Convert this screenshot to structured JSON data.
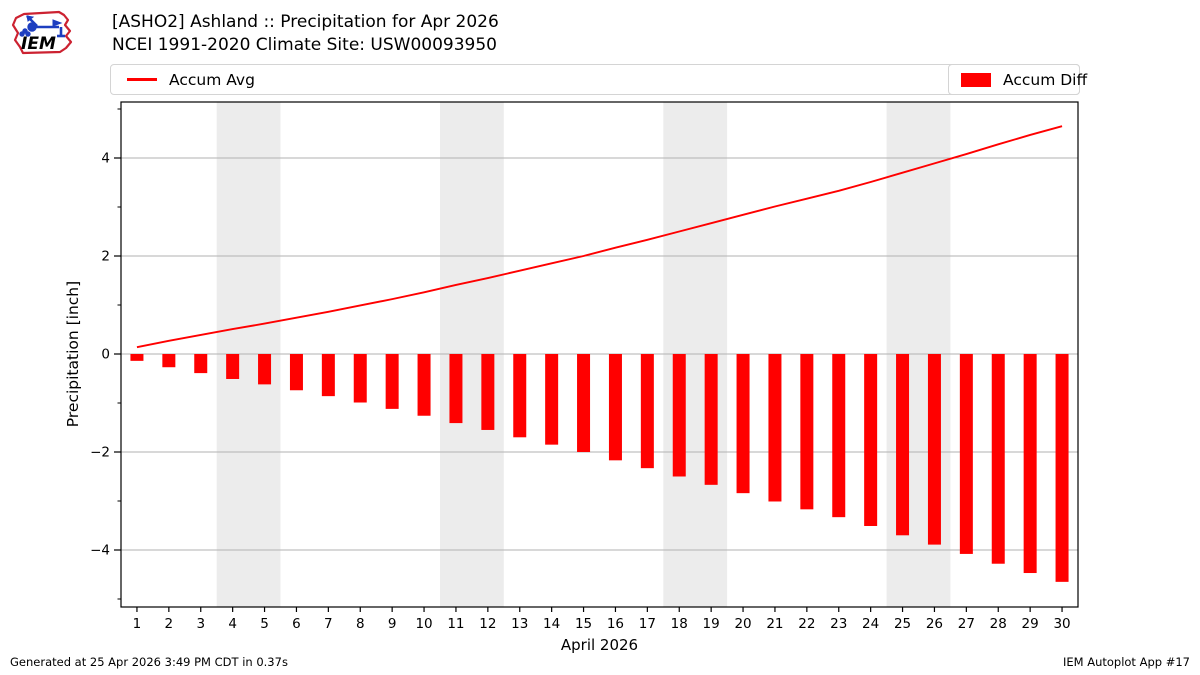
{
  "header": {
    "title_line1": "[ASHO2] Ashland :: Precipitation for Apr 2026",
    "title_line2": "NCEI 1991-2020 Climate Site: USW00093950",
    "logo_text": "IEM"
  },
  "legend": {
    "avg_label": "Accum Avg",
    "diff_label": "Accum Diff"
  },
  "footer": {
    "left": "Generated at 25 Apr 2026 3:49 PM CDT in 0.37s",
    "right": "IEM Autoplot App #17"
  },
  "chart_data": {
    "type": "line+bar",
    "title": "[ASHO2] Ashland :: Precipitation for Apr 2026",
    "subtitle": "NCEI 1991-2020 Climate Site: USW00093950",
    "xlabel": "April 2026",
    "ylabel": "Precipitation [inch]",
    "x": [
      1,
      2,
      3,
      4,
      5,
      6,
      7,
      8,
      9,
      10,
      11,
      12,
      13,
      14,
      15,
      16,
      17,
      18,
      19,
      20,
      21,
      22,
      23,
      24,
      25,
      26,
      27,
      28,
      29,
      30
    ],
    "series": [
      {
        "name": "Accum Avg",
        "type": "line",
        "color": "#ff0000",
        "values": [
          0.14,
          0.27,
          0.39,
          0.51,
          0.62,
          0.74,
          0.86,
          0.99,
          1.12,
          1.26,
          1.41,
          1.55,
          1.7,
          1.85,
          2.0,
          2.17,
          2.33,
          2.5,
          2.67,
          2.84,
          3.01,
          3.17,
          3.33,
          3.51,
          3.7,
          3.89,
          4.08,
          4.28,
          4.47,
          4.65
        ]
      },
      {
        "name": "Accum Diff",
        "type": "bar",
        "color": "#ff0000",
        "values": [
          -0.14,
          -0.27,
          -0.39,
          -0.51,
          -0.62,
          -0.74,
          -0.86,
          -0.99,
          -1.12,
          -1.26,
          -1.41,
          -1.55,
          -1.7,
          -1.85,
          -2.0,
          -2.17,
          -2.33,
          -2.5,
          -2.67,
          -2.84,
          -3.01,
          -3.17,
          -3.33,
          -3.51,
          -3.7,
          -3.89,
          -4.08,
          -4.28,
          -4.47,
          -4.65
        ]
      }
    ],
    "ylim": [
      -5.15,
      5.15
    ],
    "yticks": [
      -4,
      -2,
      0,
      2,
      4
    ],
    "ytick_labels": [
      "−4",
      "−2",
      "0",
      "2",
      "4"
    ],
    "minor_yticks": [
      -5,
      -3,
      -1,
      1,
      3,
      5
    ],
    "weekend_bands": [
      [
        4,
        5
      ],
      [
        11,
        12
      ],
      [
        18,
        19
      ],
      [
        25,
        26
      ]
    ],
    "grid": true,
    "legend_position": "top",
    "band_color": "#ececec",
    "grid_color": "#b2b2b2",
    "accent_color": "#ff0000"
  }
}
